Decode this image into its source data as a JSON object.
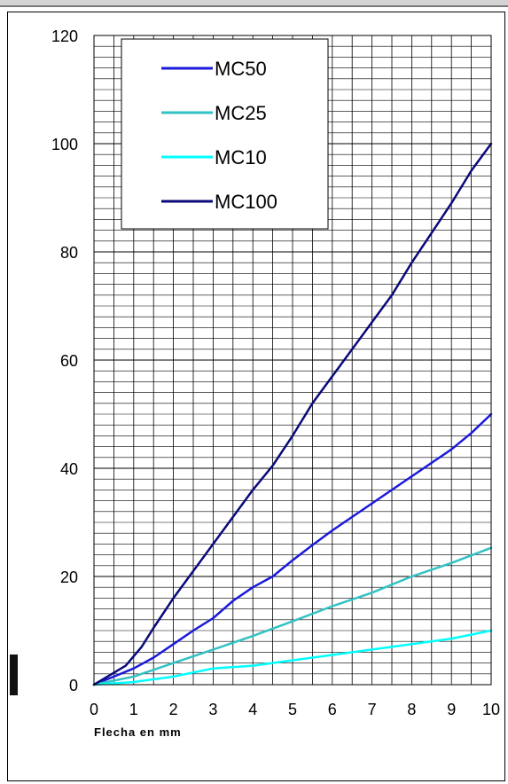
{
  "chart_data": {
    "type": "line",
    "title": "",
    "xlabel": "Flecha en mm",
    "ylabel": "",
    "xlim": [
      0,
      10
    ],
    "ylim": [
      0,
      120
    ],
    "xticks": [
      "0",
      "1",
      "2",
      "3",
      "4",
      "5",
      "6",
      "7",
      "8",
      "9",
      "10"
    ],
    "yticks": [
      "0",
      "20",
      "40",
      "60",
      "80",
      "100",
      "120"
    ],
    "grid": true,
    "legend_position": "top-left",
    "series": [
      {
        "name": "MC50",
        "color": "#1a1adc",
        "x": [
          0,
          0.5,
          1,
          1.5,
          2,
          2.5,
          3,
          3.5,
          4,
          4.5,
          5,
          5.5,
          6,
          6.5,
          7,
          7.5,
          8,
          8.5,
          9,
          9.5,
          10
        ],
        "y": [
          0,
          1.5,
          3,
          5,
          7.5,
          10,
          12.3,
          15.5,
          18,
          20,
          23,
          25.8,
          28.5,
          31,
          33.5,
          36,
          38.5,
          41,
          43.5,
          46.5,
          50
        ]
      },
      {
        "name": "MC25",
        "color": "#33c2c4",
        "x": [
          0,
          1,
          2,
          3,
          4,
          5,
          6,
          7,
          8,
          9,
          10
        ],
        "y": [
          0,
          1.5,
          4,
          6.5,
          9,
          11.7,
          14.5,
          17,
          20,
          22.5,
          25.3
        ]
      },
      {
        "name": "MC10",
        "color": "#00ffff",
        "x": [
          0,
          1,
          2,
          3,
          4,
          5,
          6,
          7,
          8,
          9,
          10
        ],
        "y": [
          0,
          0.5,
          1.5,
          3,
          3.5,
          4.5,
          5.5,
          6.5,
          7.5,
          8.5,
          10
        ]
      },
      {
        "name": "MC100",
        "color": "#0a0a7a",
        "x": [
          0,
          0.8,
          1.2,
          1.5,
          2,
          2.5,
          3,
          3.5,
          4,
          4.5,
          5,
          5.5,
          6,
          6.5,
          7,
          7.5,
          8,
          8.5,
          9,
          9.5,
          10
        ],
        "y": [
          0,
          3.5,
          7,
          10.5,
          16,
          21,
          26,
          31,
          36,
          40.5,
          46,
          52,
          57,
          62,
          67,
          72,
          78,
          83.5,
          89,
          95,
          100
        ]
      }
    ]
  }
}
